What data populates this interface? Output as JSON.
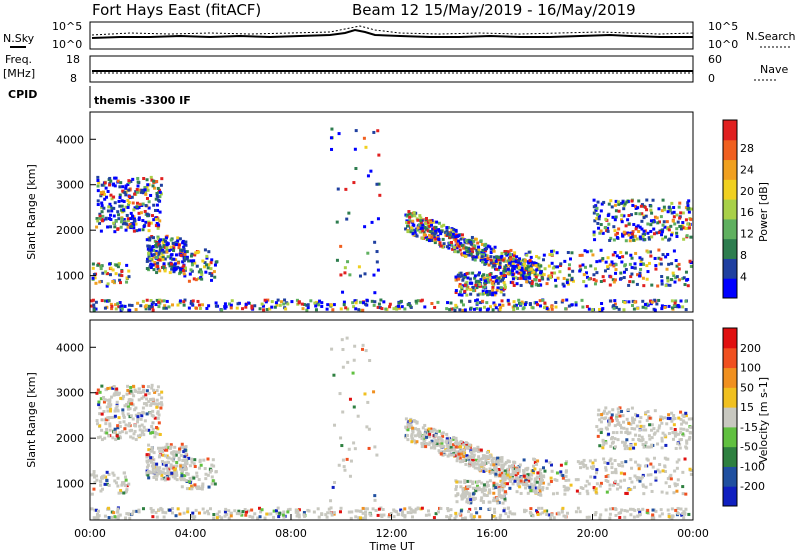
{
  "header": {
    "title": "Fort Hays East (fitACF)",
    "beam_info": "Beam 12 15/May/2019 - 16/May/2019"
  },
  "top_panels": {
    "nsky_label": "N.Sky",
    "nsearch_label": "N.Search",
    "noise_ticks_left": [
      "10^5",
      "10^0"
    ],
    "noise_ticks_right": [
      "10^5",
      "10^0"
    ],
    "freq_label": "Freq.",
    "freq_unit": "[MHz]",
    "freq_ticks": [
      "18",
      "8"
    ],
    "nave_label": "Nave",
    "nave_ticks": [
      "60",
      "0"
    ],
    "cpid_label": "CPID",
    "cpid_value": "themis -3300 IF"
  },
  "chart_data": [
    {
      "type": "heatmap",
      "name": "power",
      "ylabel": "Slant Range [km]",
      "ylim": [
        200,
        4600
      ],
      "yticks": [
        1000,
        2000,
        3000,
        4000
      ],
      "xlim": [
        0,
        24
      ],
      "colorbar": {
        "label": "Power [dB]",
        "ticks": [
          "4",
          "8",
          "12",
          "16",
          "20",
          "24",
          "28"
        ],
        "colors": [
          "#0000ff",
          "#2040a0",
          "#2e7d4f",
          "#5fb05f",
          "#a8d048",
          "#f0d020",
          "#f0a020",
          "#f06020",
          "#e02020"
        ]
      }
    },
    {
      "type": "heatmap",
      "name": "velocity",
      "ylabel": "Slant Range [km]",
      "ylim": [
        200,
        4600
      ],
      "yticks": [
        1000,
        2000,
        3000,
        4000
      ],
      "xlim": [
        0,
        24
      ],
      "xticks": [
        "00:00",
        "04:00",
        "08:00",
        "12:00",
        "16:00",
        "20:00",
        "00:00"
      ],
      "xlabel": "Time UT",
      "colorbar": {
        "label": "Velocity [m s-1]",
        "ticks": [
          "200",
          "100",
          "50",
          "15",
          "-15",
          "-50",
          "-100",
          "-200"
        ],
        "colors": [
          "#1020c0",
          "#2050a0",
          "#2e8040",
          "#60c040",
          "#c8c8c0",
          "#f0c020",
          "#f09020",
          "#f05020",
          "#e01010"
        ]
      }
    }
  ]
}
